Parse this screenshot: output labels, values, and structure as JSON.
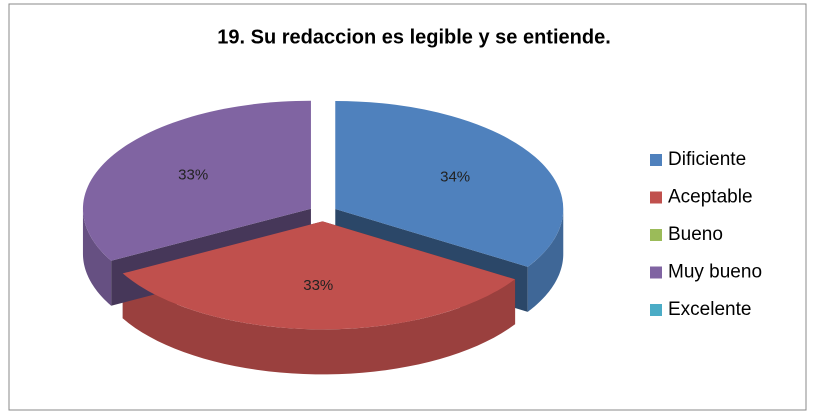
{
  "chart_data": {
    "type": "pie",
    "title": "19. Su redaccion es legible y se entiende.",
    "categories": [
      "Dificiente",
      "Aceptable",
      "Bueno",
      "Muy bueno",
      "Excelente"
    ],
    "values": [
      34,
      33,
      0,
      33,
      0
    ],
    "value_labels": [
      "34%",
      "33%",
      null,
      "33%",
      null
    ],
    "colors": [
      "#4f81bd",
      "#c0504d",
      "#9bbb59",
      "#8064a2",
      "#4bacc6"
    ],
    "legend": "right"
  }
}
